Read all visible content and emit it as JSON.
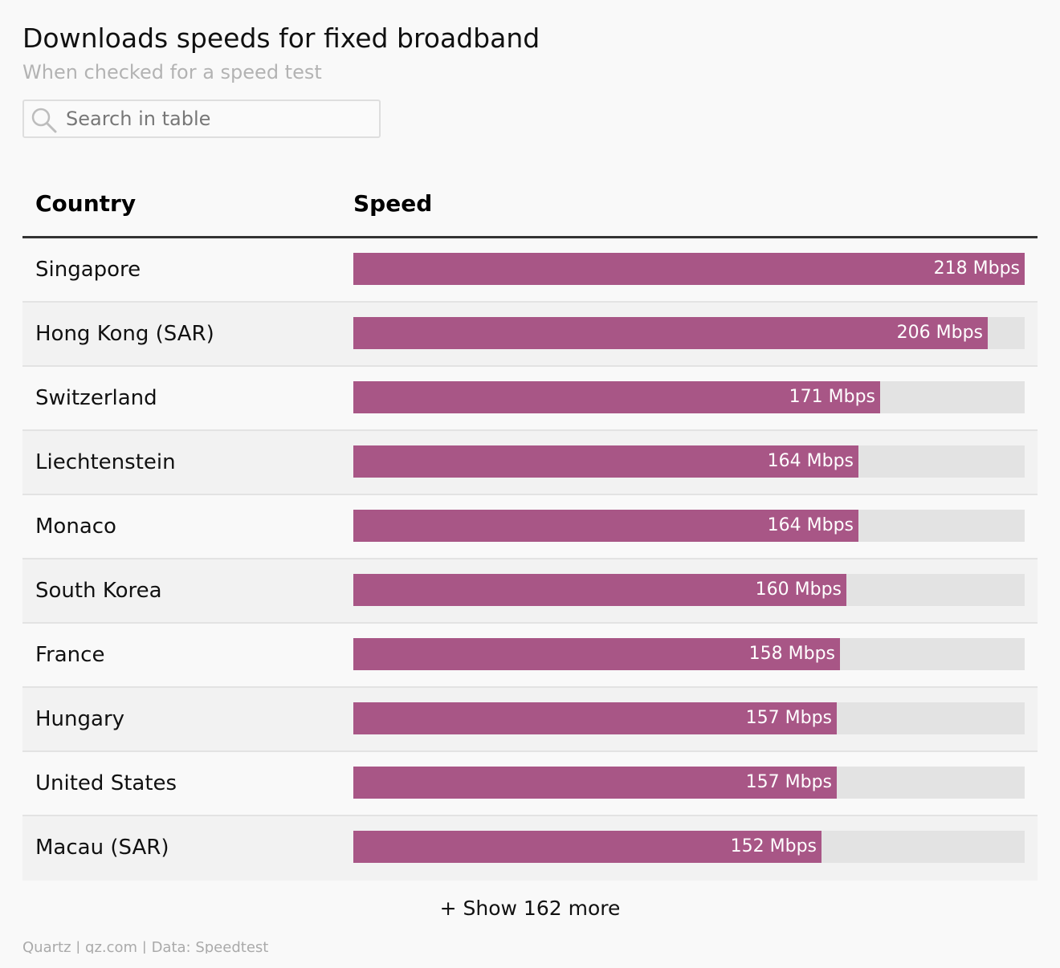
{
  "header": {
    "title": "Downloads speeds for fixed broadband",
    "subtitle": "When checked for a speed test"
  },
  "search": {
    "placeholder": "Search in table",
    "value": ""
  },
  "table": {
    "columns": [
      "Country",
      "Speed"
    ],
    "show_more_label": "+ Show 162 more"
  },
  "footer": {
    "source": "Quartz | qz.com | Data: Speedtest"
  },
  "colors": {
    "bar": "#a85686",
    "track": "#e3e3e3"
  },
  "chart_data": {
    "type": "table",
    "columns": [
      "Country",
      "Speed"
    ],
    "unit": "Mbps",
    "xlim": [
      0,
      218
    ],
    "rows": [
      {
        "country": "Singapore",
        "value": 218,
        "label": "218 Mbps"
      },
      {
        "country": "Hong Kong (SAR)",
        "value": 206,
        "label": "206 Mbps"
      },
      {
        "country": "Switzerland",
        "value": 171,
        "label": "171 Mbps"
      },
      {
        "country": "Liechtenstein",
        "value": 164,
        "label": "164 Mbps"
      },
      {
        "country": "Monaco",
        "value": 164,
        "label": "164 Mbps"
      },
      {
        "country": "South Korea",
        "value": 160,
        "label": "160 Mbps"
      },
      {
        "country": "France",
        "value": 158,
        "label": "158 Mbps"
      },
      {
        "country": "Hungary",
        "value": 157,
        "label": "157 Mbps"
      },
      {
        "country": "United States",
        "value": 157,
        "label": "157 Mbps"
      },
      {
        "country": "Macau (SAR)",
        "value": 152,
        "label": "152 Mbps"
      }
    ]
  }
}
